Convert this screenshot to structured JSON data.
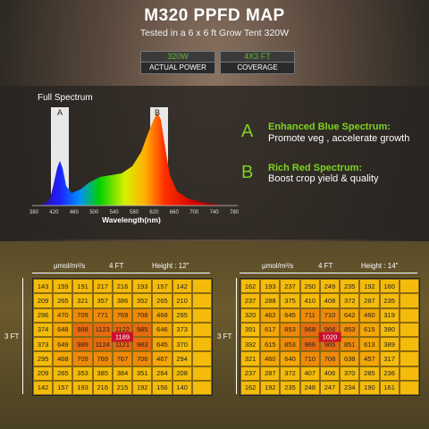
{
  "title": "M320 PPFD MAP",
  "subtitle": "Tested in a 6 x 6 ft Grow Tent 320W",
  "badges": [
    {
      "value": "320W",
      "label": "ACTUAL POWER"
    },
    {
      "value": "4X3 FT",
      "label": "COVERAGE"
    }
  ],
  "spectrum": {
    "title": "Full Spectrum",
    "marker_a": "A",
    "marker_b": "B",
    "x_ticks": [
      "380",
      "420",
      "460",
      "500",
      "540",
      "580",
      "620",
      "660",
      "700",
      "740",
      "780"
    ],
    "xlabel": "Wavelength(nm)"
  },
  "features": [
    {
      "letter": "A",
      "heading": "Enhanced Blue Spectrum:",
      "text": "Promote veg , accelerate growth"
    },
    {
      "letter": "B",
      "heading": "Rich Red Spectrum:",
      "text": "Boost crop yield & quality"
    }
  ],
  "maps": [
    {
      "unit": "μmol/m²/s",
      "width_label": "4 FT",
      "height_label": "Height : 12\"",
      "side_label": "3 FT",
      "center_value": "1189",
      "rows": [
        [
          "143",
          "159",
          "191",
          "217",
          "216",
          "193",
          "157",
          "142",
          ""
        ],
        [
          "209",
          "265",
          "321",
          "357",
          "386",
          "352",
          "265",
          "210",
          ""
        ],
        [
          "296",
          "470",
          "709",
          "771",
          "769",
          "708",
          "468",
          "295",
          ""
        ],
        [
          "374",
          "648",
          "988",
          "1123",
          "1122",
          "985",
          "646",
          "373",
          ""
        ],
        [
          "373",
          "649",
          "989",
          "1124",
          "1121",
          "983",
          "645",
          "370",
          ""
        ],
        [
          "295",
          "468",
          "709",
          "769",
          "767",
          "706",
          "467",
          "294",
          ""
        ],
        [
          "209",
          "265",
          "353",
          "385",
          "384",
          "351",
          "264",
          "208",
          ""
        ],
        [
          "142",
          "157",
          "193",
          "216",
          "215",
          "192",
          "156",
          "140",
          ""
        ]
      ]
    },
    {
      "unit": "μmol/m²/s",
      "width_label": "4 FT",
      "height_label": "Height : 14\"",
      "side_label": "3 FT",
      "center_value": "1020",
      "rows": [
        [
          "162",
          "193",
          "237",
          "250",
          "249",
          "235",
          "192",
          "160",
          ""
        ],
        [
          "237",
          "288",
          "375",
          "410",
          "408",
          "372",
          "287",
          "235",
          ""
        ],
        [
          "320",
          "462",
          "645",
          "711",
          "710",
          "642",
          "460",
          "319",
          ""
        ],
        [
          "391",
          "617",
          "853",
          "968",
          "966",
          "853",
          "615",
          "390",
          ""
        ],
        [
          "392",
          "615",
          "853",
          "966",
          "965",
          "851",
          "613",
          "389",
          ""
        ],
        [
          "321",
          "460",
          "640",
          "710",
          "708",
          "638",
          "457",
          "317",
          ""
        ],
        [
          "237",
          "287",
          "372",
          "407",
          "406",
          "370",
          "285",
          "236",
          ""
        ],
        [
          "162",
          "192",
          "235",
          "248",
          "247",
          "234",
          "190",
          "161",
          ""
        ]
      ]
    }
  ],
  "colors": {
    "accent_green": "#7dd321",
    "cell_low": "#f2b705",
    "cell_mid": "#f5a000",
    "cell_high": "#ea7a05",
    "center_red": "#c8102e"
  }
}
